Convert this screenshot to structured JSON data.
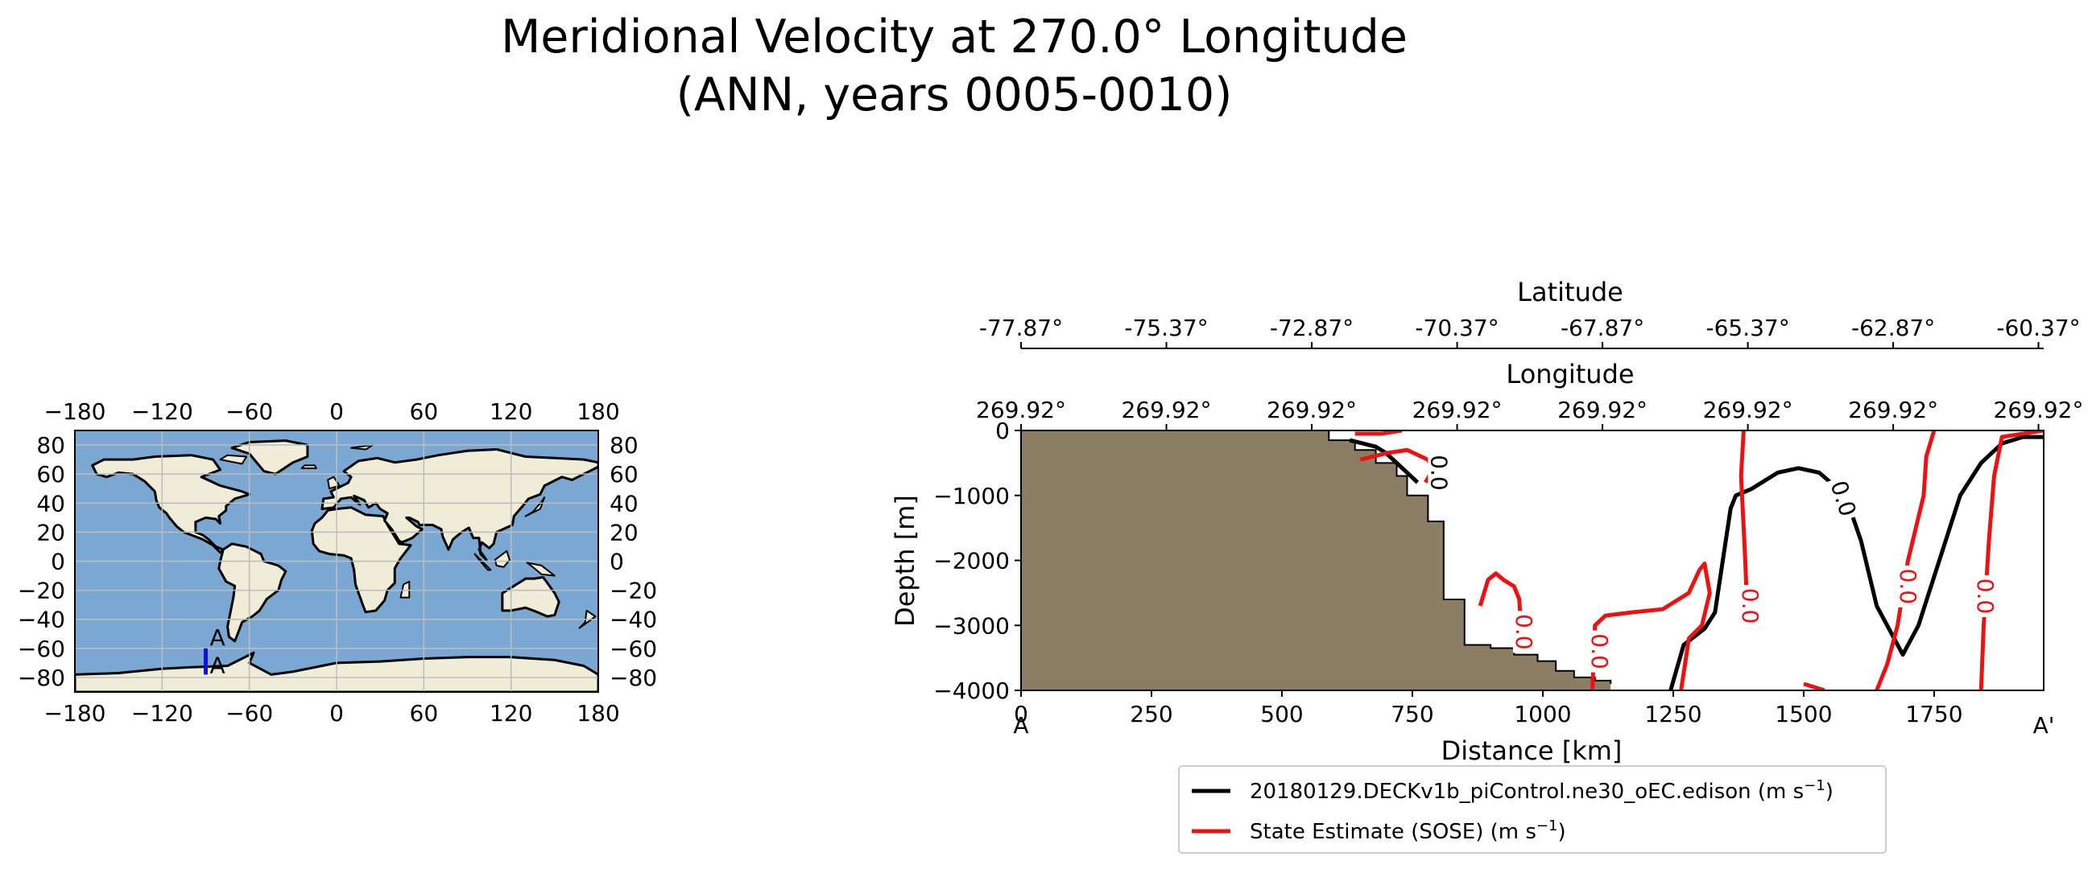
{
  "chart_data": [
    {
      "type": "map",
      "title": "",
      "xticks": [
        -180,
        -120,
        -60,
        0,
        60,
        120,
        180
      ],
      "yticks": [
        80,
        60,
        40,
        20,
        0,
        -20,
        -40,
        -60,
        -80
      ],
      "xtick_labels": [
        "−180",
        "−120",
        "−60",
        "0",
        "60",
        "120",
        "180"
      ],
      "ytick_labels": [
        "80",
        "60",
        "40",
        "20",
        "0",
        "−20",
        "−40",
        "−60",
        "−80"
      ],
      "xlim": [
        -180,
        180
      ],
      "ylim": [
        -90,
        90
      ],
      "grid": true,
      "transect": {
        "start_label": "A",
        "end_label": "A'",
        "lon": -90,
        "lat_start": -78,
        "lat_end": -60
      },
      "colors": {
        "ocean": "#7aa8d2",
        "land": "#efecd8",
        "transect": "#1010e0"
      }
    },
    {
      "type": "contour",
      "title": "",
      "xlabel": "Distance [km]",
      "ylabel": "Depth [m]",
      "xlim": [
        0,
        1960
      ],
      "ylim": [
        -4000,
        0
      ],
      "xticks": [
        0,
        250,
        500,
        750,
        1000,
        1250,
        1500,
        1750
      ],
      "xtick_labels": [
        "0",
        "250",
        "500",
        "750",
        "1000",
        "1250",
        "1500",
        "1750"
      ],
      "yticks": [
        0,
        -1000,
        -2000,
        -3000,
        -4000
      ],
      "ytick_labels": [
        "0",
        "−1000",
        "−2000",
        "−3000",
        "−4000"
      ],
      "endpoint_labels": {
        "start": "A",
        "end": "A'"
      },
      "top_axes": [
        {
          "label": "Longitude",
          "ticks": [
            0,
            278.6,
            557.2,
            835.8,
            1114.4,
            1393,
            1671.6,
            1950
          ],
          "tick_labels": [
            "269.92°",
            "269.92°",
            "269.92°",
            "269.92°",
            "269.92°",
            "269.92°",
            "269.92°",
            "269.92°"
          ]
        },
        {
          "label": "Latitude",
          "ticks": [
            0,
            278.6,
            557.2,
            835.8,
            1114.4,
            1393,
            1671.6,
            1950
          ],
          "tick_labels": [
            "-77.87°",
            "-75.37°",
            "-72.87°",
            "-70.37°",
            "-67.87°",
            "-65.37°",
            "-62.87°",
            "-60.37°"
          ]
        }
      ],
      "bathymetry": [
        [
          590,
          0
        ],
        [
          590,
          -150
        ],
        [
          640,
          -150
        ],
        [
          640,
          -300
        ],
        [
          680,
          -300
        ],
        [
          680,
          -500
        ],
        [
          720,
          -500
        ],
        [
          720,
          -700
        ],
        [
          740,
          -700
        ],
        [
          740,
          -1000
        ],
        [
          780,
          -1000
        ],
        [
          780,
          -1400
        ],
        [
          810,
          -1400
        ],
        [
          810,
          -2600
        ],
        [
          850,
          -2600
        ],
        [
          850,
          -3300
        ],
        [
          900,
          -3300
        ],
        [
          900,
          -3350
        ],
        [
          945,
          -3350
        ],
        [
          945,
          -3450
        ],
        [
          990,
          -3450
        ],
        [
          990,
          -3550
        ],
        [
          1025,
          -3550
        ],
        [
          1025,
          -3700
        ],
        [
          1060,
          -3700
        ],
        [
          1060,
          -3800
        ],
        [
          1100,
          -3800
        ],
        [
          1100,
          -3850
        ],
        [
          1130,
          -3850
        ],
        [
          1130,
          -3900
        ]
      ],
      "series": [
        {
          "name": "20180129.DECKv1b_piControl.ne30_oEC.edison",
          "units": "m s⁻¹",
          "color": "#000000",
          "contour_level_label": "0.0",
          "lines": [
            [
              [
                1245,
                -4000
              ],
              [
                1270,
                -3300
              ],
              [
                1310,
                -3050
              ],
              [
                1330,
                -2800
              ],
              [
                1345,
                -2000
              ],
              [
                1360,
                -1200
              ],
              [
                1370,
                -1000
              ],
              [
                1400,
                -900
              ],
              [
                1450,
                -650
              ],
              [
                1490,
                -580
              ],
              [
                1530,
                -650
              ],
              [
                1580,
                -1000
              ],
              [
                1610,
                -1700
              ],
              [
                1640,
                -2700
              ],
              [
                1690,
                -3450
              ],
              [
                1720,
                -3000
              ],
              [
                1760,
                -2000
              ],
              [
                1800,
                -1000
              ],
              [
                1840,
                -500
              ],
              [
                1880,
                -200
              ],
              [
                1920,
                -100
              ],
              [
                1960,
                -100
              ]
            ],
            [
              [
                630,
                -150
              ],
              [
                680,
                -250
              ],
              [
                700,
                -350
              ],
              [
                720,
                -500
              ],
              [
                760,
                -800
              ]
            ]
          ]
        },
        {
          "name": "State Estimate (SOSE)",
          "units": "m s⁻¹",
          "color": "#ee1111",
          "contour_level_label": "0.0",
          "lines": [
            [
              [
                1385,
                0
              ],
              [
                1380,
                -700
              ],
              [
                1385,
                -1500
              ],
              [
                1388,
                -2000
              ],
              [
                1390,
                -2400
              ]
            ],
            [
              [
                1750,
                0
              ],
              [
                1735,
                -400
              ],
              [
                1730,
                -1000
              ],
              [
                1700,
                -2000
              ],
              [
                1680,
                -3000
              ],
              [
                1660,
                -3600
              ],
              [
                1640,
                -4000
              ]
            ],
            [
              [
                1960,
                0
              ],
              [
                1880,
                -100
              ],
              [
                1865,
                -700
              ],
              [
                1855,
                -1700
              ],
              [
                1845,
                -3000
              ],
              [
                1840,
                -4000
              ]
            ],
            [
              [
                1095,
                -4000
              ],
              [
                1100,
                -3000
              ],
              [
                1120,
                -2850
              ],
              [
                1170,
                -2800
              ],
              [
                1230,
                -2750
              ],
              [
                1280,
                -2500
              ],
              [
                1300,
                -2150
              ],
              [
                1310,
                -2050
              ],
              [
                1320,
                -2500
              ],
              [
                1305,
                -3000
              ],
              [
                1280,
                -3200
              ],
              [
                1265,
                -4000
              ]
            ],
            [
              [
                880,
                -2700
              ],
              [
                895,
                -2300
              ],
              [
                910,
                -2200
              ],
              [
                925,
                -2300
              ],
              [
                945,
                -2400
              ],
              [
                955,
                -2600
              ],
              [
                960,
                -3300
              ]
            ],
            [
              [
                640,
                -50
              ],
              [
                690,
                -50
              ],
              [
                730,
                0
              ]
            ],
            [
              [
                650,
                -450
              ],
              [
                700,
                -350
              ],
              [
                740,
                -300
              ],
              [
                780,
                -450
              ],
              [
                790,
                -600
              ],
              [
                775,
                -800
              ]
            ],
            [
              [
                1500,
                -3900
              ],
              [
                1540,
                -4000
              ]
            ]
          ]
        }
      ]
    }
  ]
}
